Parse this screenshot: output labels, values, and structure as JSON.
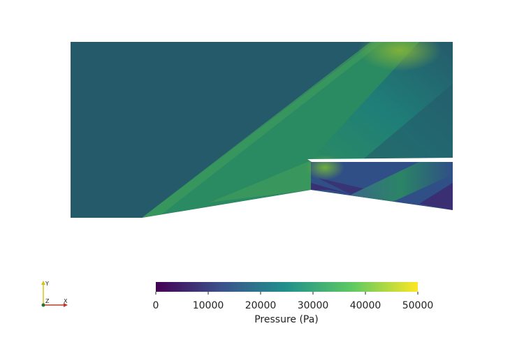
{
  "colorbar": {
    "title": "Pressure (Pa)",
    "colormap": "viridis",
    "range": [
      0,
      50000
    ],
    "ticks": [
      "0",
      "10000",
      "20000",
      "30000",
      "40000",
      "50000"
    ],
    "stops": [
      "#440154",
      "#3b528b",
      "#21918c",
      "#5ec962",
      "#fde725"
    ]
  },
  "orientation_axes": {
    "x_label": "X",
    "y_label": "Y",
    "z_label": "Z",
    "x_color": "#c0392b",
    "y_color": "#d4c21a",
    "z_color": "#1e7a2e"
  },
  "field_colors": {
    "freestream": "#255a6b",
    "shock_region": "#2a8a62",
    "compression": "#45a05a",
    "expansion": "#2f4f86",
    "low_pressure": "#3a2f72",
    "high_pressure": "#7fb13b"
  }
}
